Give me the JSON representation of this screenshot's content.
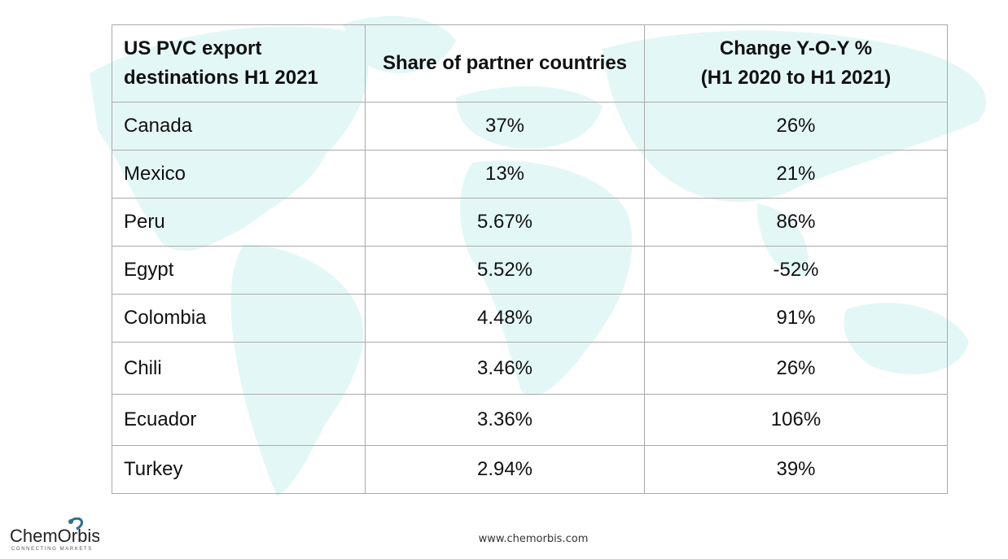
{
  "chart_data": {
    "type": "table",
    "columns": [
      "US PVC export destinations H1 2021",
      "Share of partner countries",
      "Change Y-O-Y %\n(H1 2020 to H1 2021)"
    ],
    "rows": [
      [
        "Canada",
        "37%",
        "26%"
      ],
      [
        "Mexico",
        "13%",
        "21%"
      ],
      [
        "Peru",
        "5.67%",
        "86%"
      ],
      [
        "Egypt",
        "5.52%",
        "-52%"
      ],
      [
        "Colombia",
        "4.48%",
        "91%"
      ],
      [
        "Chili",
        "3.46%",
        "26%"
      ],
      [
        "Ecuador",
        "3.36%",
        "106%"
      ],
      [
        "Turkey",
        "2.94%",
        "39%"
      ]
    ]
  },
  "footer": {
    "logo": "ChemOrbis",
    "logo_tagline": "CONNECTING MARKETS",
    "website": "www.chemorbis.com"
  },
  "colors": {
    "map": "#e4f7f7",
    "border": "#a9a9a9",
    "logo_blue": "#2e6f8e"
  }
}
